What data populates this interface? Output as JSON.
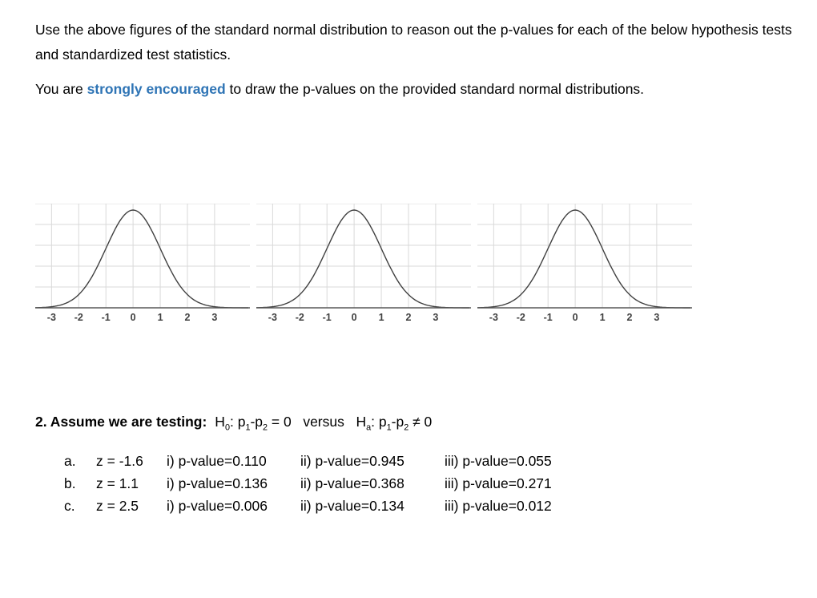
{
  "content": {
    "intro": "Use the above figures of the standard normal distribution to reason out the p-values for each of the below hypothesis tests and standardized test statistics.",
    "encouragement": {
      "pre": "You are ",
      "highlight": "strongly encouraged",
      "post": " to draw the p-values on the provided standard normal distributions.",
      "highlight_color": "#2E74B5"
    },
    "question": {
      "label": "2. Assume we are testing:",
      "hypothesis_plain": "H₀: p₁-p₂ = 0   versus   Hₐ: p₁-p₂ ≠ 0",
      "hypothesis_segments": [
        {
          "t": "H"
        },
        {
          "t": "0",
          "sub": true
        },
        {
          "t": ": p"
        },
        {
          "t": "1",
          "sub": true
        },
        {
          "t": "-p"
        },
        {
          "t": "2",
          "sub": true
        },
        {
          "t": " = 0   versus   H"
        },
        {
          "t": "a",
          "sub": true
        },
        {
          "t": ": p"
        },
        {
          "t": "1",
          "sub": true
        },
        {
          "t": "-p"
        },
        {
          "t": "2",
          "sub": true
        },
        {
          "t": " ≠ 0"
        }
      ]
    },
    "answers": [
      {
        "letter": "a.",
        "z": "z = -1.6",
        "i": "i) p-value=0.110",
        "ii": "ii) p-value=0.945",
        "iii": "iii) p-value=0.055"
      },
      {
        "letter": "b.",
        "z": "z = 1.1",
        "i": "i) p-value=0.136",
        "ii": "ii) p-value=0.368",
        "iii": "iii) p-value=0.271"
      },
      {
        "letter": "c.",
        "z": "z = 2.5",
        "i": "i) p-value=0.006",
        "ii": "ii) p-value=0.134",
        "iii": "iii) p-value=0.012"
      }
    ]
  },
  "chart_data": [
    {
      "type": "line",
      "title": "standard normal distribution curve 1",
      "curve": "standard-normal-density",
      "x_ticks": [
        -3,
        -2,
        -1,
        0,
        1,
        2,
        3
      ],
      "xlim": [
        -3.6,
        4.3
      ],
      "ylim": [
        0,
        1.05
      ],
      "grid": true,
      "legend": "none",
      "colors": {
        "curve": "#404040",
        "grid": "#d9d9d9",
        "axis": "#595959",
        "tick": "#404040"
      }
    },
    {
      "type": "line",
      "title": "standard normal distribution curve 2",
      "curve": "standard-normal-density",
      "x_ticks": [
        -3,
        -2,
        -1,
        0,
        1,
        2,
        3
      ],
      "xlim": [
        -3.6,
        4.3
      ],
      "ylim": [
        0,
        1.05
      ],
      "grid": true,
      "legend": "none",
      "colors": {
        "curve": "#404040",
        "grid": "#d9d9d9",
        "axis": "#595959",
        "tick": "#404040"
      }
    },
    {
      "type": "line",
      "title": "standard normal distribution curve 3",
      "curve": "standard-normal-density",
      "x_ticks": [
        -3,
        -2,
        -1,
        0,
        1,
        2,
        3
      ],
      "xlim": [
        -3.6,
        4.3
      ],
      "ylim": [
        0,
        1.05
      ],
      "grid": true,
      "legend": "none",
      "colors": {
        "curve": "#404040",
        "grid": "#d9d9d9",
        "axis": "#595959",
        "tick": "#404040"
      }
    }
  ]
}
